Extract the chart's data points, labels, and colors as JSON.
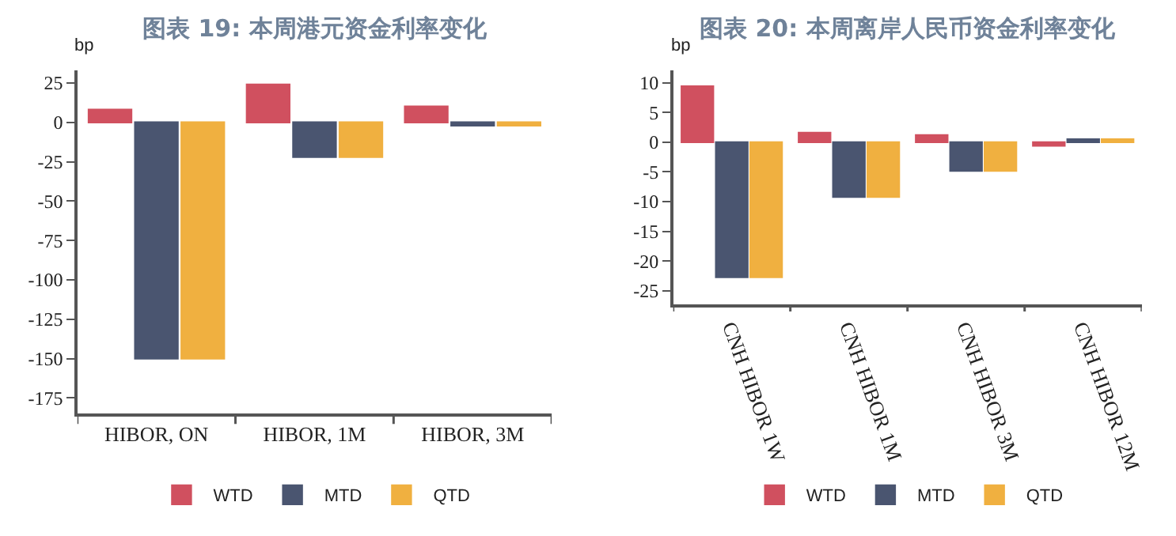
{
  "chart_data": [
    {
      "type": "bar",
      "title": "图表 19: 本周港元资金利率变化",
      "ylabel": "bp",
      "categories": [
        "HIBOR, ON",
        "HIBOR, 1M",
        "HIBOR, 3M"
      ],
      "series": [
        {
          "name": "WTD",
          "color": "#d0505f",
          "values": [
            8,
            24,
            10
          ]
        },
        {
          "name": "MTD",
          "color": "#4a5570",
          "values": [
            -150,
            -22,
            -2
          ]
        },
        {
          "name": "QTD",
          "color": "#f0b040",
          "values": [
            -150,
            -22,
            -2
          ]
        }
      ],
      "ylim": [
        -185,
        33
      ],
      "yticks": [
        25,
        0,
        -25,
        -50,
        -75,
        -100,
        -125,
        -150,
        -175
      ],
      "grid": false,
      "legend": "bottom"
    },
    {
      "type": "bar",
      "title": "图表 20: 本周离岸人民币资金利率变化",
      "ylabel": "bp",
      "categories": [
        "CNH HIBOR 1W",
        "CNH HIBOR 1M",
        "CNH HIBOR 3M",
        "CNH HIBOR 12M"
      ],
      "series": [
        {
          "name": "WTD",
          "color": "#d0505f",
          "values": [
            9.4,
            1.6,
            1.2,
            -0.6
          ]
        },
        {
          "name": "MTD",
          "color": "#4a5570",
          "values": [
            -22.7,
            -9.2,
            -4.8,
            0.5
          ]
        },
        {
          "name": "QTD",
          "color": "#f0b040",
          "values": [
            -22.7,
            -9.2,
            -4.8,
            0.5
          ]
        }
      ],
      "ylim": [
        -27.3,
        12.1
      ],
      "yticks": [
        10,
        5,
        0,
        -5,
        -10,
        -15,
        -20,
        -25
      ],
      "grid": false,
      "legend": "bottom"
    }
  ]
}
